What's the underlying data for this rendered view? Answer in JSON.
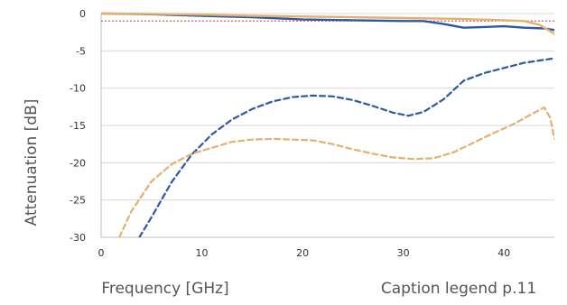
{
  "chart_data": {
    "type": "line",
    "title": "",
    "xlabel": "Frequency [GHz]",
    "ylabel": "Attenuation [dB]",
    "caption": "Caption legend p.11",
    "xlim": [
      0,
      45
    ],
    "ylim": [
      -30,
      0
    ],
    "xticks": [
      "0",
      "10",
      "20",
      "30",
      "40"
    ],
    "yticks": [
      "0",
      "-5",
      "-10",
      "-15",
      "-20",
      "-25",
      "-30"
    ],
    "grid": "horizontal",
    "reference_line": {
      "y": -1,
      "color": "#e0303a",
      "style": "dotted"
    },
    "series": [
      {
        "color": "#2d58a4",
        "style": "solid",
        "points": [
          [
            0,
            0
          ],
          [
            5,
            -0.1
          ],
          [
            10,
            -0.3
          ],
          [
            15,
            -0.5
          ],
          [
            20,
            -0.8
          ],
          [
            25,
            -0.9
          ],
          [
            30,
            -1.0
          ],
          [
            32,
            -1.0
          ],
          [
            34,
            -1.4
          ],
          [
            36,
            -1.9
          ],
          [
            38,
            -1.8
          ],
          [
            40,
            -1.7
          ],
          [
            42,
            -1.9
          ],
          [
            44,
            -2.0
          ],
          [
            45,
            -2.2
          ]
        ]
      },
      {
        "color": "#e5b06e",
        "style": "solid",
        "points": [
          [
            0,
            0
          ],
          [
            5,
            -0.05
          ],
          [
            10,
            -0.15
          ],
          [
            15,
            -0.3
          ],
          [
            20,
            -0.4
          ],
          [
            25,
            -0.5
          ],
          [
            30,
            -0.6
          ],
          [
            35,
            -0.7
          ],
          [
            40,
            -0.9
          ],
          [
            42,
            -1.0
          ],
          [
            43.5,
            -1.5
          ],
          [
            45,
            -2.7
          ]
        ]
      },
      {
        "color": "#2d58a4",
        "style": "dashed",
        "points": [
          [
            3.8,
            -30
          ],
          [
            5,
            -27.3
          ],
          [
            7,
            -22.6
          ],
          [
            9,
            -18.9
          ],
          [
            11,
            -16.2
          ],
          [
            13,
            -14.2
          ],
          [
            15,
            -12.8
          ],
          [
            17,
            -11.8
          ],
          [
            19,
            -11.2
          ],
          [
            21,
            -11.0
          ],
          [
            23,
            -11.1
          ],
          [
            25,
            -11.6
          ],
          [
            27,
            -12.4
          ],
          [
            29,
            -13.3
          ],
          [
            30.5,
            -13.7
          ],
          [
            32,
            -13.2
          ],
          [
            34,
            -11.5
          ],
          [
            36,
            -9.0
          ],
          [
            38,
            -8.0
          ],
          [
            40,
            -7.3
          ],
          [
            42,
            -6.6
          ],
          [
            44,
            -6.2
          ],
          [
            45,
            -6.0
          ]
        ]
      },
      {
        "color": "#e5b06e",
        "style": "dashed",
        "points": [
          [
            1.8,
            -30
          ],
          [
            3,
            -26.5
          ],
          [
            5,
            -22.5
          ],
          [
            7,
            -20.2
          ],
          [
            9,
            -18.8
          ],
          [
            11,
            -18.0
          ],
          [
            13,
            -17.2
          ],
          [
            15,
            -16.9
          ],
          [
            17,
            -16.8
          ],
          [
            19,
            -16.9
          ],
          [
            21,
            -17.0
          ],
          [
            23,
            -17.5
          ],
          [
            25,
            -18.2
          ],
          [
            27,
            -18.8
          ],
          [
            29,
            -19.3
          ],
          [
            31,
            -19.5
          ],
          [
            33,
            -19.4
          ],
          [
            35,
            -18.6
          ],
          [
            37,
            -17.3
          ],
          [
            39,
            -16.0
          ],
          [
            41,
            -14.8
          ],
          [
            43,
            -13.3
          ],
          [
            44,
            -12.6
          ],
          [
            44.6,
            -14.0
          ],
          [
            45,
            -16.8
          ]
        ]
      }
    ]
  }
}
